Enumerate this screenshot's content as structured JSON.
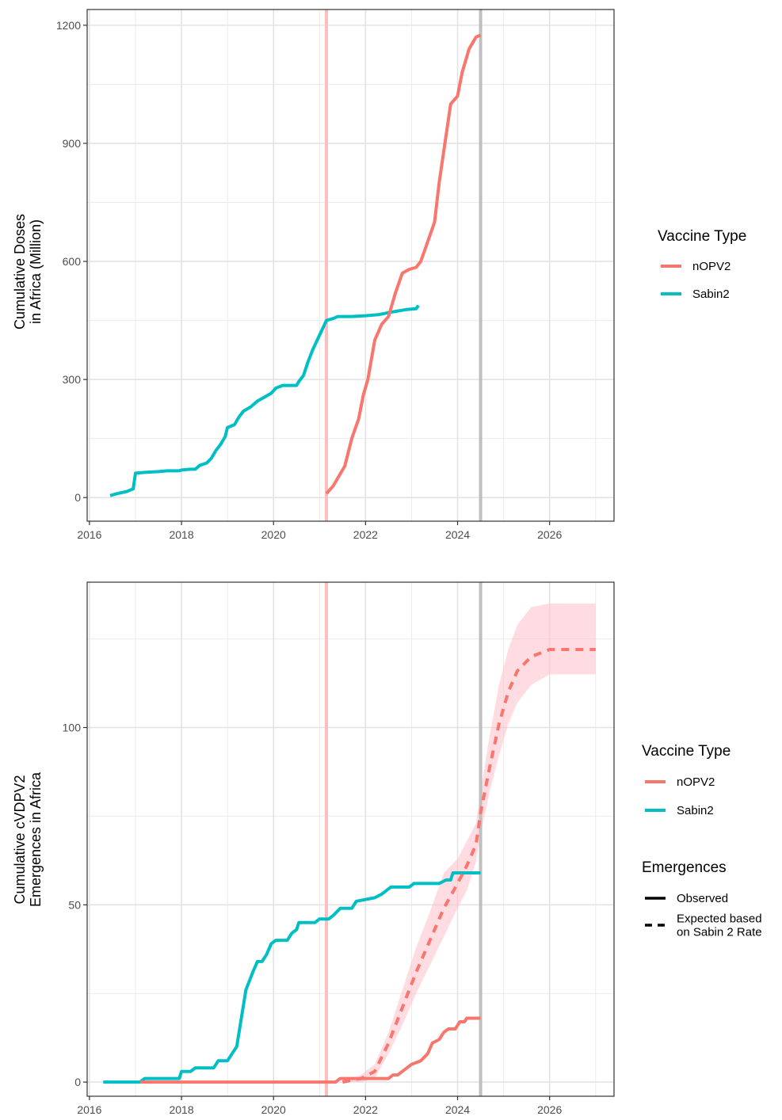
{
  "chart_data": [
    {
      "type": "line",
      "ylabel": [
        "Cumulative Doses",
        "in Africa (Million)"
      ],
      "xlim": [
        2015.95,
        2027.4
      ],
      "ylim": [
        -60,
        1240
      ],
      "x_ticks": [
        2016,
        2018,
        2020,
        2022,
        2024,
        2026
      ],
      "y_ticks": [
        0,
        300,
        600,
        900,
        1200
      ],
      "grid": true,
      "vlines": [
        {
          "x": 2021.15,
          "color": "#ffbdbd"
        },
        {
          "x": 2024.5,
          "color": "#bfbfbf"
        }
      ],
      "legend": {
        "title": "Vaccine Type",
        "position": "right",
        "entries": [
          {
            "label": "nOPV2",
            "color": "#f8766d"
          },
          {
            "label": "Sabin2",
            "color": "#00bfc4"
          }
        ]
      },
      "series": [
        {
          "name": "Sabin2",
          "color": "#00bfc4",
          "points": [
            [
              2016.45,
              5
            ],
            [
              2016.6,
              10
            ],
            [
              2016.8,
              15
            ],
            [
              2016.95,
              22
            ],
            [
              2017.0,
              62
            ],
            [
              2017.2,
              64
            ],
            [
              2017.5,
              66
            ],
            [
              2017.7,
              68
            ],
            [
              2017.95,
              68
            ],
            [
              2018.0,
              70
            ],
            [
              2018.2,
              72
            ],
            [
              2018.3,
              72
            ],
            [
              2018.4,
              82
            ],
            [
              2018.55,
              88
            ],
            [
              2018.65,
              100
            ],
            [
              2018.75,
              120
            ],
            [
              2018.85,
              135
            ],
            [
              2018.95,
              155
            ],
            [
              2019.0,
              178
            ],
            [
              2019.15,
              185
            ],
            [
              2019.25,
              205
            ],
            [
              2019.35,
              220
            ],
            [
              2019.5,
              230
            ],
            [
              2019.65,
              245
            ],
            [
              2019.8,
              255
            ],
            [
              2019.95,
              265
            ],
            [
              2020.05,
              278
            ],
            [
              2020.2,
              285
            ],
            [
              2020.5,
              285
            ],
            [
              2020.55,
              295
            ],
            [
              2020.65,
              310
            ],
            [
              2020.75,
              345
            ],
            [
              2020.85,
              375
            ],
            [
              2020.95,
              400
            ],
            [
              2021.05,
              425
            ],
            [
              2021.15,
              450
            ],
            [
              2021.3,
              455
            ],
            [
              2021.4,
              460
            ],
            [
              2021.7,
              460
            ],
            [
              2022.0,
              462
            ],
            [
              2022.3,
              465
            ],
            [
              2022.6,
              472
            ],
            [
              2022.9,
              478
            ],
            [
              2023.1,
              480
            ],
            [
              2023.15,
              488
            ]
          ]
        },
        {
          "name": "nOPV2",
          "color": "#f8766d",
          "points": [
            [
              2021.15,
              10
            ],
            [
              2021.3,
              30
            ],
            [
              2021.4,
              50
            ],
            [
              2021.55,
              80
            ],
            [
              2021.7,
              150
            ],
            [
              2021.85,
              200
            ],
            [
              2021.95,
              260
            ],
            [
              2022.05,
              300
            ],
            [
              2022.2,
              400
            ],
            [
              2022.35,
              440
            ],
            [
              2022.5,
              460
            ],
            [
              2022.65,
              520
            ],
            [
              2022.8,
              570
            ],
            [
              2022.95,
              580
            ],
            [
              2023.1,
              585
            ],
            [
              2023.2,
              600
            ],
            [
              2023.35,
              650
            ],
            [
              2023.5,
              700
            ],
            [
              2023.6,
              800
            ],
            [
              2023.75,
              920
            ],
            [
              2023.85,
              1000
            ],
            [
              2024.0,
              1020
            ],
            [
              2024.1,
              1080
            ],
            [
              2024.25,
              1140
            ],
            [
              2024.4,
              1170
            ],
            [
              2024.5,
              1175
            ]
          ]
        }
      ]
    },
    {
      "type": "line",
      "ylabel": [
        "Cumulative cVDPV2",
        "Emergences in Africa"
      ],
      "xlim": [
        2015.95,
        2027.4
      ],
      "ylim": [
        -4,
        141
      ],
      "x_ticks": [
        2016,
        2018,
        2020,
        2022,
        2024,
        2026
      ],
      "y_ticks": [
        0,
        50,
        100
      ],
      "grid": true,
      "vlines": [
        {
          "x": 2021.15,
          "color": "#ffbdbd"
        },
        {
          "x": 2024.5,
          "color": "#bfbfbf"
        }
      ],
      "legend": {
        "title": "Vaccine Type",
        "position": "right",
        "entries": [
          {
            "label": "nOPV2",
            "color": "#f8766d"
          },
          {
            "label": "Sabin2",
            "color": "#00bfc4"
          }
        ],
        "linetype_title": "Emergences",
        "linetype_entries": [
          {
            "label": "Observed",
            "dash": "solid"
          },
          {
            "label": [
              "Expected based",
              "on Sabin 2 Rate"
            ],
            "dash": "dashed"
          }
        ]
      },
      "series": [
        {
          "name": "Sabin2",
          "color": "#00bfc4",
          "dash": "solid",
          "points": [
            [
              2016.3,
              0
            ],
            [
              2017.1,
              0
            ],
            [
              2017.2,
              1
            ],
            [
              2017.95,
              1
            ],
            [
              2018.0,
              3
            ],
            [
              2018.2,
              3
            ],
            [
              2018.3,
              4
            ],
            [
              2018.7,
              4
            ],
            [
              2018.8,
              6
            ],
            [
              2019.0,
              6
            ],
            [
              2019.1,
              8
            ],
            [
              2019.2,
              10
            ],
            [
              2019.3,
              18
            ],
            [
              2019.4,
              26
            ],
            [
              2019.55,
              31
            ],
            [
              2019.65,
              34
            ],
            [
              2019.75,
              34
            ],
            [
              2019.85,
              36
            ],
            [
              2019.95,
              39
            ],
            [
              2020.05,
              40
            ],
            [
              2020.3,
              40
            ],
            [
              2020.4,
              42
            ],
            [
              2020.5,
              43
            ],
            [
              2020.55,
              45
            ],
            [
              2020.9,
              45
            ],
            [
              2021.0,
              46
            ],
            [
              2021.2,
              46
            ],
            [
              2021.3,
              47
            ],
            [
              2021.45,
              49
            ],
            [
              2021.7,
              49
            ],
            [
              2021.8,
              51
            ],
            [
              2022.2,
              52
            ],
            [
              2022.35,
              53
            ],
            [
              2022.55,
              55
            ],
            [
              2022.7,
              55
            ],
            [
              2022.95,
              55
            ],
            [
              2023.05,
              56
            ],
            [
              2023.6,
              56
            ],
            [
              2023.75,
              57
            ],
            [
              2023.85,
              57
            ],
            [
              2023.9,
              59
            ],
            [
              2024.5,
              59
            ]
          ]
        },
        {
          "name": "nOPV2",
          "color": "#f8766d",
          "dash": "solid",
          "points": [
            [
              2017.1,
              0
            ],
            [
              2021.35,
              0
            ],
            [
              2021.45,
              1
            ],
            [
              2022.25,
              1
            ],
            [
              2022.5,
              1
            ],
            [
              2022.6,
              2
            ],
            [
              2022.7,
              2
            ],
            [
              2022.8,
              3
            ],
            [
              2022.9,
              4
            ],
            [
              2023.0,
              5
            ],
            [
              2023.2,
              6
            ],
            [
              2023.35,
              8
            ],
            [
              2023.45,
              11
            ],
            [
              2023.6,
              12
            ],
            [
              2023.7,
              14
            ],
            [
              2023.8,
              15
            ],
            [
              2023.95,
              15
            ],
            [
              2024.05,
              17
            ],
            [
              2024.15,
              17
            ],
            [
              2024.2,
              18
            ],
            [
              2024.5,
              18
            ]
          ]
        },
        {
          "name": "nOPV2",
          "color": "#f8766d",
          "dash": "dashed",
          "points": [
            [
              2021.5,
              0
            ],
            [
              2021.9,
              1
            ],
            [
              2022.2,
              3
            ],
            [
              2022.5,
              11
            ],
            [
              2022.8,
              21
            ],
            [
              2023.1,
              31
            ],
            [
              2023.4,
              40
            ],
            [
              2023.7,
              49
            ],
            [
              2024.0,
              56
            ],
            [
              2024.2,
              61
            ],
            [
              2024.4,
              67
            ],
            [
              2024.5,
              76
            ],
            [
              2024.7,
              89
            ],
            [
              2024.9,
              101
            ],
            [
              2025.1,
              110
            ],
            [
              2025.3,
              116
            ],
            [
              2025.6,
              120
            ],
            [
              2026.0,
              122
            ],
            [
              2026.5,
              122
            ],
            [
              2027.0,
              122
            ]
          ]
        },
        {
          "name": "nOPV2 interval",
          "color": "#ffc0cb",
          "band": true,
          "points": [
            [
              2021.5,
              0,
              0
            ],
            [
              2021.9,
              0,
              2
            ],
            [
              2022.2,
              1,
              5
            ],
            [
              2022.5,
              8,
              14
            ],
            [
              2022.8,
              16,
              26
            ],
            [
              2023.1,
              25,
              38
            ],
            [
              2023.4,
              33,
              48
            ],
            [
              2023.7,
              41,
              59
            ],
            [
              2024.0,
              49,
              63
            ],
            [
              2024.2,
              54,
              68
            ],
            [
              2024.4,
              62,
              73
            ],
            [
              2024.5,
              70,
              82
            ],
            [
              2024.7,
              82,
              98
            ],
            [
              2024.9,
              92,
              112
            ],
            [
              2025.1,
              101,
              122
            ],
            [
              2025.3,
              107,
              129
            ],
            [
              2025.6,
              112,
              134
            ],
            [
              2026.0,
              115,
              135
            ],
            [
              2026.5,
              115,
              135
            ],
            [
              2027.0,
              115,
              135
            ]
          ]
        }
      ]
    }
  ]
}
